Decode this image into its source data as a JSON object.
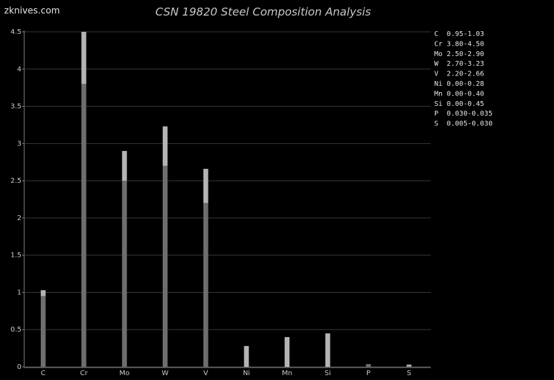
{
  "chart_data": {
    "type": "range-bar",
    "title": "CSN 19820 Steel Composition Analysis",
    "watermark": "zknives.com",
    "categories": [
      "C",
      "Cr",
      "Mo",
      "W",
      "V",
      "Ni",
      "Mn",
      "Si",
      "P",
      "S"
    ],
    "low": [
      0.95,
      3.8,
      2.5,
      2.7,
      2.2,
      0.0,
      0.0,
      0.0,
      0.03,
      0.005
    ],
    "high": [
      1.03,
      4.5,
      2.9,
      3.23,
      2.66,
      0.28,
      0.4,
      0.45,
      0.035,
      0.03
    ],
    "range_labels": [
      "0.95-1.03",
      "3.80-4.50",
      "2.50-2.90",
      "2.70-3.23",
      "2.20-2.66",
      "0.00-0.28",
      "0.00-0.40",
      "0.00-0.45",
      "0.030-0.035",
      "0.005-0.030"
    ],
    "low_color": "#6e6e6e",
    "high_color": "#b4b4b4",
    "ylim": [
      0,
      4.5
    ],
    "yticks": [
      0,
      0.5,
      1,
      1.5,
      2,
      2.5,
      3,
      3.5,
      4,
      4.5
    ],
    "grid": true
  }
}
